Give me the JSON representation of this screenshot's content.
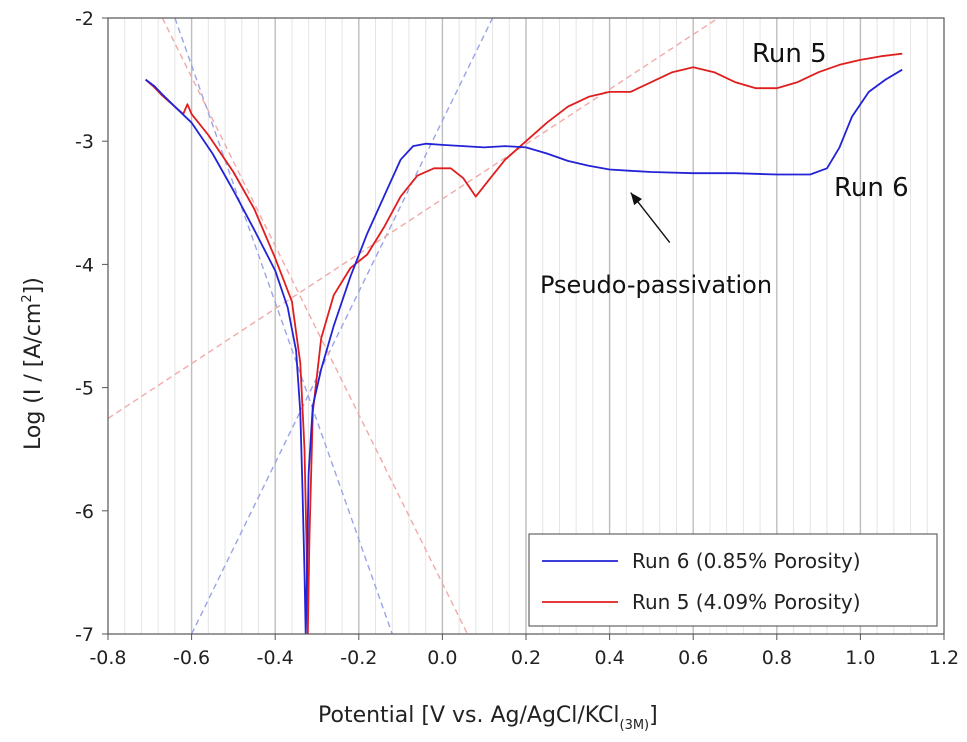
{
  "chart_data": {
    "type": "line",
    "xlabel": "Potential [V vs. Ag/AgCl/KCl",
    "xlabel_sub": "(3M)",
    "xlabel_end": "]",
    "ylabel": "Log (I / [A/cm",
    "ylabel_sup": "2",
    "ylabel_end": "])",
    "xlim": [
      -0.8,
      1.2
    ],
    "ylim": [
      -7,
      -2
    ],
    "xticks": [
      -0.8,
      -0.6,
      -0.4,
      -0.2,
      0.0,
      0.2,
      0.4,
      0.6,
      0.8,
      1.0,
      1.2
    ],
    "xtick_labels": [
      "-0.8",
      "-0.6",
      "-0.4",
      "-0.2",
      "0.0",
      "0.2",
      "0.4",
      "0.6",
      "0.8",
      "1.0",
      "1.2"
    ],
    "yticks": [
      -7,
      -6,
      -5,
      -4,
      -3,
      -2
    ],
    "ytick_labels": [
      "-7",
      "-6",
      "-5",
      "-4",
      "-3",
      "-2"
    ],
    "grid": "vertical",
    "legend_position": "bottom-right",
    "series": [
      {
        "name": "Run 6 (0.85% Porosity)",
        "color": "#2323d6",
        "points": [
          [
            -0.71,
            -2.5
          ],
          [
            -0.69,
            -2.55
          ],
          [
            -0.67,
            -2.62
          ],
          [
            -0.64,
            -2.72
          ],
          [
            -0.6,
            -2.85
          ],
          [
            -0.55,
            -3.1
          ],
          [
            -0.5,
            -3.4
          ],
          [
            -0.45,
            -3.72
          ],
          [
            -0.4,
            -4.05
          ],
          [
            -0.37,
            -4.35
          ],
          [
            -0.35,
            -4.7
          ],
          [
            -0.34,
            -5.2
          ],
          [
            -0.335,
            -5.8
          ],
          [
            -0.33,
            -6.5
          ],
          [
            -0.327,
            -7.0
          ],
          [
            -0.324,
            -6.5
          ],
          [
            -0.32,
            -5.7
          ],
          [
            -0.31,
            -5.15
          ],
          [
            -0.29,
            -4.85
          ],
          [
            -0.26,
            -4.5
          ],
          [
            -0.22,
            -4.1
          ],
          [
            -0.18,
            -3.75
          ],
          [
            -0.14,
            -3.45
          ],
          [
            -0.1,
            -3.15
          ],
          [
            -0.07,
            -3.04
          ],
          [
            -0.04,
            -3.02
          ],
          [
            0.0,
            -3.03
          ],
          [
            0.05,
            -3.04
          ],
          [
            0.1,
            -3.05
          ],
          [
            0.15,
            -3.04
          ],
          [
            0.2,
            -3.05
          ],
          [
            0.25,
            -3.1
          ],
          [
            0.3,
            -3.16
          ],
          [
            0.35,
            -3.2
          ],
          [
            0.4,
            -3.23
          ],
          [
            0.45,
            -3.24
          ],
          [
            0.5,
            -3.25
          ],
          [
            0.6,
            -3.26
          ],
          [
            0.7,
            -3.26
          ],
          [
            0.8,
            -3.27
          ],
          [
            0.88,
            -3.27
          ],
          [
            0.92,
            -3.22
          ],
          [
            0.95,
            -3.05
          ],
          [
            0.98,
            -2.8
          ],
          [
            1.02,
            -2.6
          ],
          [
            1.06,
            -2.5
          ],
          [
            1.1,
            -2.42
          ]
        ]
      },
      {
        "name": "Run 5 (4.09% Porosity)",
        "color": "#e01e1e",
        "points": [
          [
            -0.71,
            -2.5
          ],
          [
            -0.69,
            -2.56
          ],
          [
            -0.67,
            -2.63
          ],
          [
            -0.64,
            -2.72
          ],
          [
            -0.62,
            -2.78
          ],
          [
            -0.61,
            -2.7
          ],
          [
            -0.6,
            -2.78
          ],
          [
            -0.56,
            -2.95
          ],
          [
            -0.5,
            -3.25
          ],
          [
            -0.45,
            -3.55
          ],
          [
            -0.4,
            -3.95
          ],
          [
            -0.36,
            -4.3
          ],
          [
            -0.34,
            -4.8
          ],
          [
            -0.33,
            -5.5
          ],
          [
            -0.325,
            -6.3
          ],
          [
            -0.322,
            -7.0
          ],
          [
            -0.318,
            -6.2
          ],
          [
            -0.31,
            -5.2
          ],
          [
            -0.29,
            -4.6
          ],
          [
            -0.26,
            -4.25
          ],
          [
            -0.22,
            -4.03
          ],
          [
            -0.18,
            -3.92
          ],
          [
            -0.14,
            -3.7
          ],
          [
            -0.1,
            -3.45
          ],
          [
            -0.06,
            -3.28
          ],
          [
            -0.02,
            -3.22
          ],
          [
            0.02,
            -3.22
          ],
          [
            0.05,
            -3.3
          ],
          [
            0.08,
            -3.45
          ],
          [
            0.11,
            -3.32
          ],
          [
            0.15,
            -3.15
          ],
          [
            0.2,
            -3.0
          ],
          [
            0.25,
            -2.85
          ],
          [
            0.3,
            -2.72
          ],
          [
            0.35,
            -2.64
          ],
          [
            0.4,
            -2.6
          ],
          [
            0.45,
            -2.6
          ],
          [
            0.5,
            -2.52
          ],
          [
            0.55,
            -2.44
          ],
          [
            0.6,
            -2.4
          ],
          [
            0.65,
            -2.44
          ],
          [
            0.7,
            -2.52
          ],
          [
            0.75,
            -2.57
          ],
          [
            0.8,
            -2.57
          ],
          [
            0.85,
            -2.52
          ],
          [
            0.9,
            -2.44
          ],
          [
            0.95,
            -2.38
          ],
          [
            1.0,
            -2.34
          ],
          [
            1.05,
            -2.31
          ],
          [
            1.1,
            -2.29
          ]
        ]
      }
    ],
    "tafel_lines": [
      {
        "color": "#9aa4e8",
        "points": [
          [
            -0.64,
            -2.0
          ],
          [
            -0.12,
            -7.0
          ]
        ]
      },
      {
        "color": "#9aa4e8",
        "points": [
          [
            -0.6,
            -7.0
          ],
          [
            0.12,
            -2.0
          ]
        ]
      },
      {
        "color": "#f2a9a9",
        "points": [
          [
            -0.67,
            -2.0
          ],
          [
            0.06,
            -7.0
          ]
        ]
      },
      {
        "color": "#f2a9a9",
        "points": [
          [
            -0.8,
            -5.25
          ],
          [
            0.66,
            -2.0
          ]
        ]
      }
    ],
    "annotations": {
      "run5_label": "Run 5",
      "run6_label": "Run 6",
      "passivation_label": "Pseudo-passivation"
    },
    "annotation_arrow_target": [
      0.46,
      -3.32
    ],
    "annotation_arrow_source": [
      0.52,
      -3.92
    ]
  }
}
